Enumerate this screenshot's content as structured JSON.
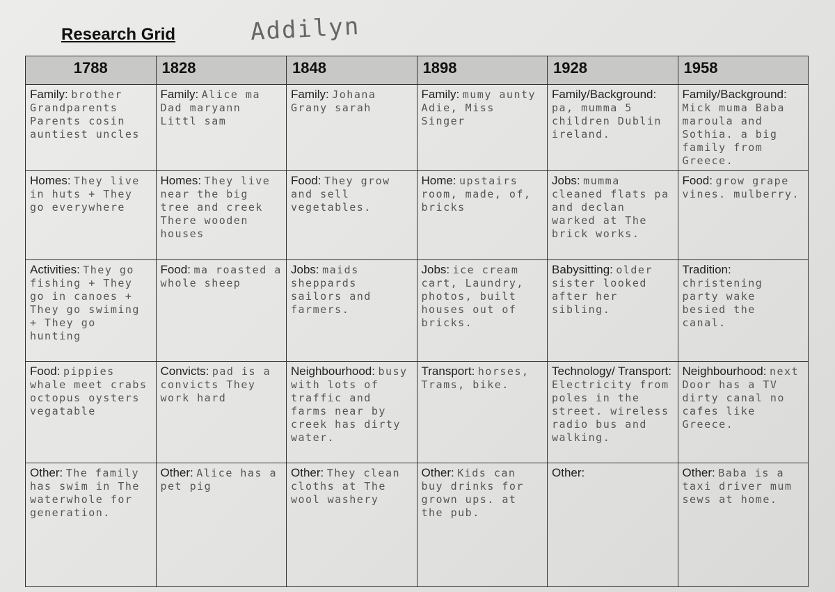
{
  "header": {
    "title": "Research Grid",
    "name": "Addilyn"
  },
  "table": {
    "columns": [
      "1788",
      "1828",
      "1848",
      "1898",
      "1928",
      "1958"
    ],
    "rows": [
      [
        {
          "label": "Family:",
          "text": "brother Grandparents Parents cosin auntiest uncles"
        },
        {
          "label": "Family:",
          "text": "Alice ma Dad maryann Littl sam"
        },
        {
          "label": "Family:",
          "text": "Johana Grany sarah"
        },
        {
          "label": "Family:",
          "text": "mumy aunty Adie, Miss Singer"
        },
        {
          "label": "Family/Background:",
          "text": "pa, mumma 5 children Dublin ireland."
        },
        {
          "label": "Family/Background:",
          "text": "Mick muma Baba maroula and Sothia. a big family from Greece."
        }
      ],
      [
        {
          "label": "Homes:",
          "text": "They live in huts + They go everywhere"
        },
        {
          "label": "Homes:",
          "text": "They live near the big tree and creek There wooden houses"
        },
        {
          "label": "Food:",
          "text": "They grow and sell vegetables."
        },
        {
          "label": "Home:",
          "text": "upstairs room, made, of, bricks"
        },
        {
          "label": "Jobs:",
          "text": "mumma cleaned flats pa and declan warked at The brick works."
        },
        {
          "label": "Food:",
          "text": "grow grape vines. mulberry."
        }
      ],
      [
        {
          "label": "Activities:",
          "text": "They go fishing + They go in canoes + They go swiming + They go hunting"
        },
        {
          "label": "Food:",
          "text": "ma roasted a whole sheep"
        },
        {
          "label": "Jobs:",
          "text": "maids sheppards sailors and farmers."
        },
        {
          "label": "Jobs:",
          "text": "ice cream cart, Laundry, photos, built houses out of bricks."
        },
        {
          "label": "Babysitting:",
          "text": "older sister looked after her sibling."
        },
        {
          "label": "Tradition:",
          "text": "christening party wake besied the canal."
        }
      ],
      [
        {
          "label": "Food:",
          "text": "pippies whale meet crabs octopus oysters vegatable"
        },
        {
          "label": "Convicts:",
          "text": "pad is a convicts They work hard"
        },
        {
          "label": "Neighbourhood:",
          "text": "busy with lots of traffic and farms near by creek has dirty water."
        },
        {
          "label": "Transport:",
          "text": "horses, Trams, bike."
        },
        {
          "label": "Technology/ Transport:",
          "text": "Electricity from poles in the street. wireless radio bus and walking."
        },
        {
          "label": "Neighbourhood:",
          "text": "next Door has a TV dirty canal no cafes like Greece."
        }
      ],
      [
        {
          "label": "Other:",
          "text": "The family has swim in The waterwhole for generation."
        },
        {
          "label": "Other:",
          "text": "Alice has a pet pig"
        },
        {
          "label": "Other:",
          "text": "They clean cloths at The wool washery"
        },
        {
          "label": "Other:",
          "text": "Kids can buy drinks for grown ups. at the pub."
        },
        {
          "label": "Other:"
        },
        {
          "label": "Other:",
          "text": "Baba is a taxi driver mum sews at home."
        }
      ]
    ]
  }
}
